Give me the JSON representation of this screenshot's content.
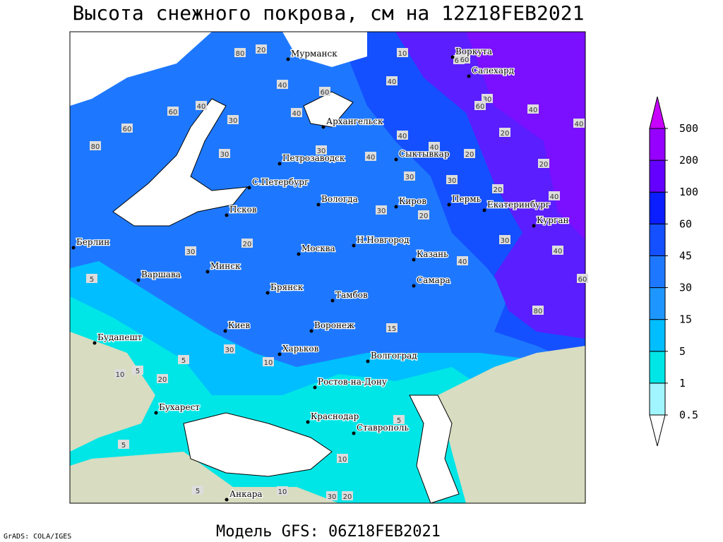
{
  "title": "Высота снежного покрова, см на 12Z18FEB2021",
  "footer_model": "Модель GFS: 06Z18FEB2021",
  "footer_credit": "GrADS: COLA/IGES",
  "cities": [
    "Мурманск",
    "Воркута",
    "Салехард",
    "Архангельск",
    "Петрозаводск",
    "Сыктывкар",
    "С.Петербург",
    "Вологда",
    "Киров",
    "Пермь",
    "Екатеринбург",
    "Курган",
    "Псков",
    "Берлин",
    "Москва",
    "Н.Новгород",
    "Казань",
    "Варшава",
    "Минск",
    "Самара",
    "Брянск",
    "Тамбов",
    "Киев",
    "Воронеж",
    "Будапешт",
    "Харьков",
    "Волгоград",
    "Ростов-на-Дону",
    "Бухарест",
    "Краснодар",
    "Ставрополь",
    "Анкара"
  ],
  "colorbar": {
    "levels": [
      0.5,
      1,
      5,
      15,
      30,
      45,
      60,
      100,
      200,
      500
    ],
    "colors": [
      "#ffffff",
      "#a0f5ff",
      "#00e6e6",
      "#00beff",
      "#1e96ff",
      "#1e78ff",
      "#1450ff",
      "#0a1eff",
      "#6400ff",
      "#9600ff",
      "#c800ff"
    ]
  },
  "contour_labels": [
    80,
    20,
    10,
    60,
    40,
    60,
    40,
    30,
    60,
    40,
    60,
    80,
    60,
    40,
    30,
    40,
    40,
    40,
    20,
    40,
    30,
    30,
    40,
    20,
    20,
    30,
    20,
    40,
    30,
    30,
    20,
    30,
    40,
    60,
    30,
    20,
    15,
    30,
    10,
    20,
    5,
    10,
    5,
    5,
    5,
    10,
    5,
    30,
    20,
    10,
    60,
    80,
    60,
    40,
    5
  ]
}
